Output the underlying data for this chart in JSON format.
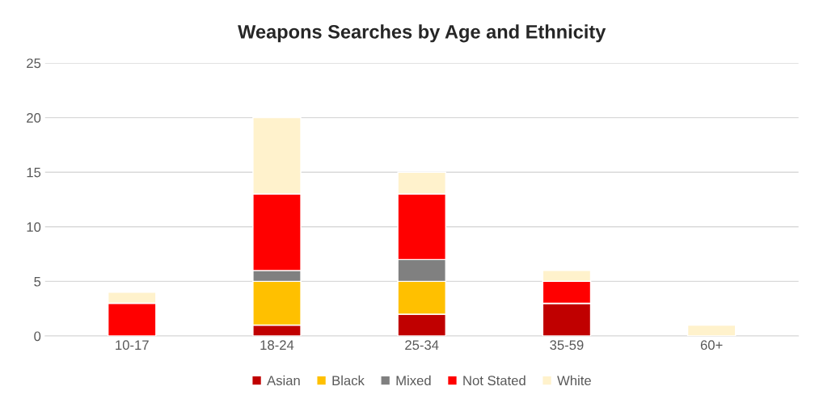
{
  "chart_data": {
    "type": "bar",
    "title": "Weapons Searches by Age and Ethnicity",
    "categories": [
      "10-17",
      "18-24",
      "25-34",
      "35-59",
      "60+"
    ],
    "stacked": true,
    "series": [
      {
        "name": "Asian",
        "color": "#c00000",
        "values": [
          0,
          1,
          2,
          3,
          0
        ]
      },
      {
        "name": "Black",
        "color": "#ffc000",
        "values": [
          0,
          4,
          3,
          0,
          0
        ]
      },
      {
        "name": "Mixed",
        "color": "#808080",
        "values": [
          0,
          1,
          2,
          0,
          0
        ]
      },
      {
        "name": "Not Stated",
        "color": "#ff0000",
        "values": [
          3,
          7,
          6,
          2,
          0
        ]
      },
      {
        "name": "White",
        "color": "#fff2cc",
        "values": [
          1,
          7,
          2,
          1,
          1
        ]
      }
    ],
    "ylim": [
      0,
      25
    ],
    "yticks": [
      0,
      5,
      10,
      15,
      20,
      25
    ],
    "grid": "y",
    "legend": "bottom"
  }
}
